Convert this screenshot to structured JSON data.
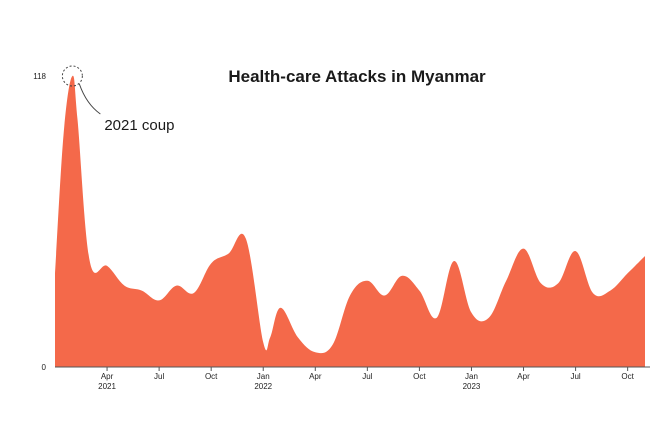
{
  "chart_data": {
    "type": "area",
    "title": "Health-care Attacks in Myanmar",
    "xlabel": "",
    "ylabel": "",
    "ylim": [
      0,
      118
    ],
    "y_ticks": [
      "0",
      "118"
    ],
    "x_ticks": [
      {
        "label": "Apr",
        "year": "2021",
        "month": 3
      },
      {
        "label": "Jul",
        "year": "",
        "month": 6
      },
      {
        "label": "Oct",
        "year": "",
        "month": 9
      },
      {
        "label": "Jan",
        "year": "2022",
        "month": 12
      },
      {
        "label": "Apr",
        "year": "",
        "month": 15
      },
      {
        "label": "Jul",
        "year": "",
        "month": 18
      },
      {
        "label": "Oct",
        "year": "",
        "month": 21
      },
      {
        "label": "Jan",
        "year": "2023",
        "month": 24
      },
      {
        "label": "Apr",
        "year": "",
        "month": 27
      },
      {
        "label": "Jul",
        "year": "",
        "month": 30
      },
      {
        "label": "Oct",
        "year": "",
        "month": 33
      }
    ],
    "x_start": "2021-01",
    "color": "#f4694a",
    "annotation": {
      "text": "2021 coup",
      "month": 1,
      "value": 118
    },
    "series": [
      {
        "x": [
          0,
          0.5,
          1,
          1.3,
          2,
          3,
          4,
          5,
          6,
          7,
          8,
          9,
          10,
          11,
          12,
          12.4,
          13,
          14,
          15,
          16,
          17,
          18,
          19,
          20,
          21,
          22,
          23,
          24,
          25,
          26,
          27,
          28,
          29,
          30,
          31,
          32,
          33,
          34
        ],
        "values": [
          38,
          95,
          118,
          100,
          43,
          41,
          33,
          31,
          27,
          33,
          30,
          42,
          46,
          52,
          10,
          12,
          24,
          12,
          6,
          9,
          29,
          35,
          29,
          37,
          31,
          20,
          43,
          22,
          20,
          35,
          48,
          34,
          34,
          47,
          30,
          31,
          38,
          45
        ]
      }
    ]
  }
}
